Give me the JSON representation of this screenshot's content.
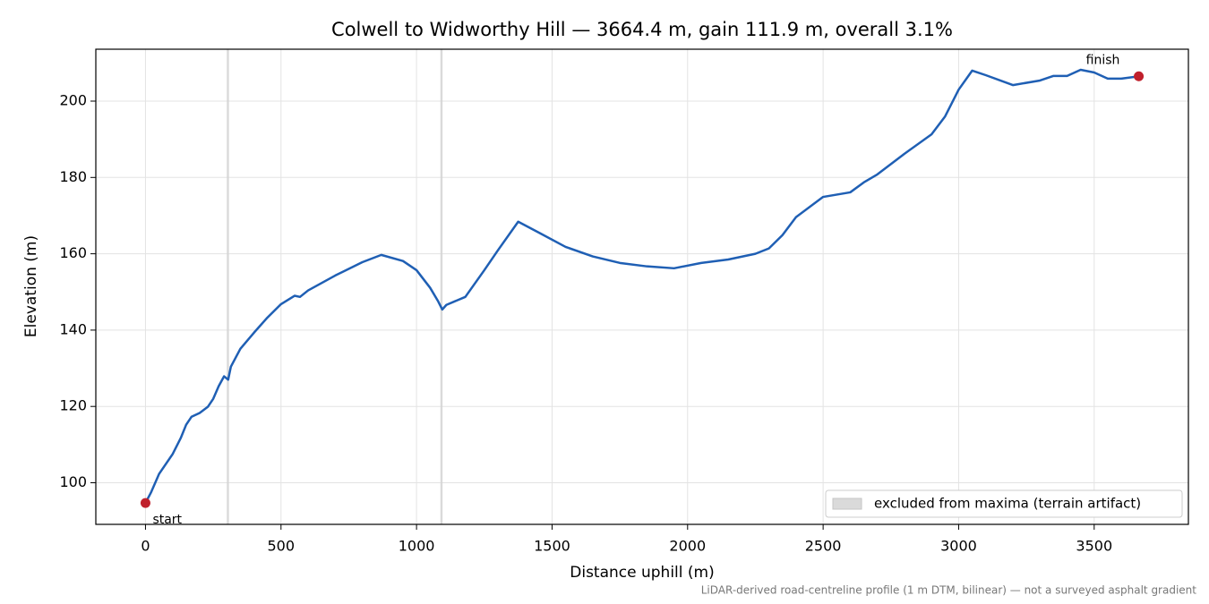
{
  "chart_data": {
    "type": "line",
    "title": "Colwell to Widworthy Hill — 3664.4 m, gain 111.9 m, overall 3.1%",
    "xlabel": "Distance uphill (m)",
    "ylabel": "Elevation (m)",
    "footnote": "LiDAR-derived road-centreline profile (1 m DTM, bilinear) — not a surveyed asphalt gradient",
    "x": [
      0,
      20,
      50,
      100,
      130,
      150,
      170,
      200,
      230,
      250,
      270,
      290,
      305,
      315,
      350,
      400,
      450,
      500,
      550,
      570,
      600,
      700,
      800,
      870,
      950,
      1000,
      1050,
      1080,
      1095,
      1110,
      1180,
      1250,
      1300,
      1375,
      1450,
      1550,
      1650,
      1750,
      1850,
      1950,
      2050,
      2150,
      2250,
      2300,
      2350,
      2400,
      2500,
      2600,
      2650,
      2700,
      2800,
      2900,
      2950,
      3000,
      3050,
      3100,
      3200,
      3300,
      3350,
      3400,
      3450,
      3500,
      3550,
      3600,
      3664.4
    ],
    "series": [
      {
        "color": "#1f5fb4",
        "values": [
          94.7,
          97.4,
          102.3,
          107.5,
          111.7,
          115.2,
          117.3,
          118.3,
          119.9,
          122,
          125.3,
          127.9,
          127,
          130.4,
          135.1,
          139.3,
          143.3,
          146.8,
          149,
          148.7,
          150.4,
          154.3,
          157.8,
          159.7,
          158.1,
          155.7,
          151.1,
          147.5,
          145.4,
          146.6,
          148.7,
          155.7,
          160.9,
          168.4,
          165.6,
          161.8,
          159.3,
          157.6,
          156.7,
          156.2,
          157.6,
          158.5,
          160,
          161.4,
          164.9,
          169.6,
          174.9,
          176.1,
          178.7,
          180.8,
          186.2,
          191.3,
          196,
          203,
          208,
          206.8,
          204.2,
          205.4,
          206.6,
          206.6,
          208.2,
          207.5,
          205.9,
          205.9,
          206.5
        ]
      }
    ],
    "shaded": {
      "name": "excluded from maxima (terrain artifact)",
      "color": "#d4d4d4",
      "ranges": [
        [
          300,
          308
        ],
        [
          1088,
          1096
        ]
      ]
    },
    "markers": [
      {
        "label": "start",
        "x": 0,
        "y": 94.7,
        "color": "#c0202c"
      },
      {
        "label": "finish",
        "x": 3664.4,
        "y": 206.5,
        "color": "#c0202c"
      }
    ],
    "xlim": [
      -183.2,
      3847.6
    ],
    "ylim": [
      89.1,
      213.6
    ],
    "xticks": [
      0,
      500,
      1000,
      1500,
      2000,
      2500,
      3000,
      3500
    ],
    "yticks": [
      100,
      120,
      140,
      160,
      180,
      200
    ],
    "grid": true,
    "legend": "lower right"
  }
}
